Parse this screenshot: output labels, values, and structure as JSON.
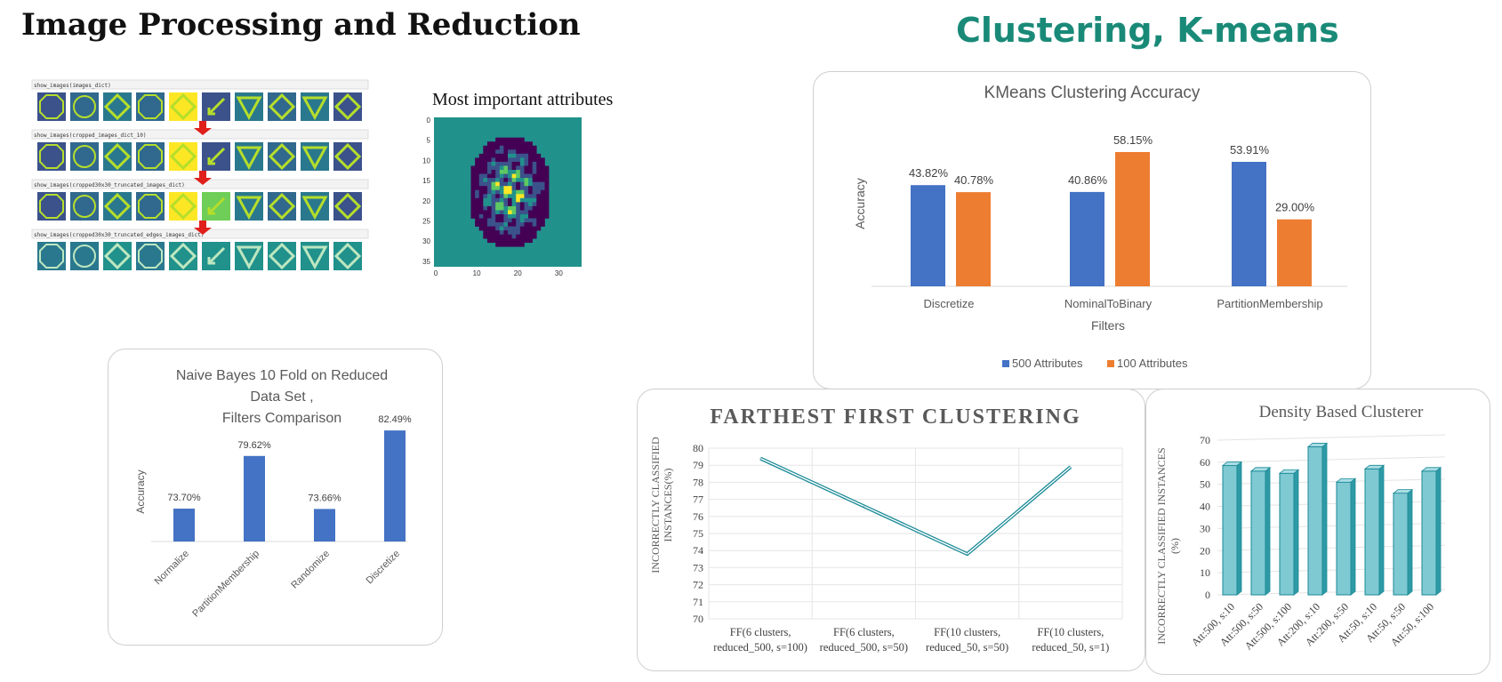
{
  "page": {
    "title_left": "Image Processing and Reduction",
    "title_right": "Clustering, K-means"
  },
  "image_strips": {
    "labels": [
      "show_images(images_dict)",
      "show_images(cropped_images_dict_10)",
      "show_images(cropped30x30_truncated_images_dict)",
      "show_images(cropped30x30_truncated_edges_images_dict)"
    ]
  },
  "colors": {
    "blue": "#4472c4",
    "orange": "#ed7d31",
    "teal": "#1a8a96",
    "teal_light": "#7fc9d3",
    "teal_dark": "#2e9aa6",
    "heading_green": "#1a8a78",
    "arrow_red": "#e0201b"
  },
  "chart_data": [
    {
      "id": "heatmap",
      "type": "heatmap",
      "title": "Most important attributes",
      "x_ticks": [
        "0",
        "10",
        "20",
        "30"
      ],
      "y_ticks": [
        "0",
        "5",
        "10",
        "15",
        "20",
        "25",
        "30",
        "35"
      ],
      "colormap": "viridis"
    },
    {
      "id": "kmeans",
      "type": "bar",
      "title": "KMeans Clustering Accuracy",
      "xlabel": "Filters",
      "ylabel": "Accuracy",
      "categories": [
        "Discretize",
        "NominalToBinary",
        "PartitionMembership"
      ],
      "series": [
        {
          "name": "500 Attributes",
          "values": [
            43.82,
            40.86,
            53.91
          ],
          "labels": [
            "43.82%",
            "40.86%",
            "53.91%"
          ]
        },
        {
          "name": "100 Attributes",
          "values": [
            40.78,
            58.15,
            29.0
          ],
          "labels": [
            "40.78%",
            "58.15%",
            "29.00%"
          ]
        }
      ],
      "ylim": [
        0,
        65
      ],
      "legend": "bottom"
    },
    {
      "id": "naive_bayes",
      "type": "bar",
      "title_lines": [
        "Naive Bayes 10 Fold on Reduced",
        "Data Set ,",
        "Filters Comparison"
      ],
      "ylabel": "Accuracy",
      "categories": [
        "Normalize",
        "PartitionMembership",
        "Randomize",
        "Discretize"
      ],
      "values": [
        73.7,
        79.62,
        73.66,
        82.49
      ],
      "labels": [
        "73.70%",
        "79.62%",
        "73.66%",
        "82.49%"
      ],
      "ylim": [
        70,
        84
      ]
    },
    {
      "id": "farthest_first",
      "type": "line",
      "title": "FARTHEST FIRST CLUSTERING",
      "ylabel_lines": [
        "INCORRECTLY CLASSIFIED",
        "INSTANCES(%)"
      ],
      "categories": [
        [
          "FF(6 clusters,",
          "reduced_500, s=100)"
        ],
        [
          "FF(6 clusters,",
          "reduced_500, s=50)"
        ],
        [
          "FF(10 clusters,",
          "reduced_50, s=50)"
        ],
        [
          "FF(10 clusters,",
          "reduced_50, s=1)"
        ]
      ],
      "values": [
        79.4,
        76.6,
        73.8,
        78.9
      ],
      "y_ticks": [
        "70",
        "71",
        "72",
        "73",
        "74",
        "75",
        "76",
        "77",
        "78",
        "79",
        "80"
      ],
      "ylim": [
        70,
        80
      ],
      "grid": true
    },
    {
      "id": "density",
      "type": "bar",
      "title": "Density Based Clusterer",
      "ylabel_lines": [
        "INCORRECTLY CLASSIFIED INSTANCES",
        "(%)"
      ],
      "categories": [
        "Att:500, s:10",
        "Att:500, s:50",
        "Att:500, s:100",
        "Att:200, s:10",
        "Att:200, s:50",
        "Att:50, s:10",
        "Att:50, s:50",
        "Att:50, s:100"
      ],
      "values": [
        58.5,
        56,
        55,
        67,
        51,
        57,
        46,
        56
      ],
      "y_ticks": [
        "0",
        "10",
        "20",
        "30",
        "40",
        "50",
        "60",
        "70"
      ],
      "ylim": [
        0,
        70
      ],
      "grid": true
    }
  ]
}
